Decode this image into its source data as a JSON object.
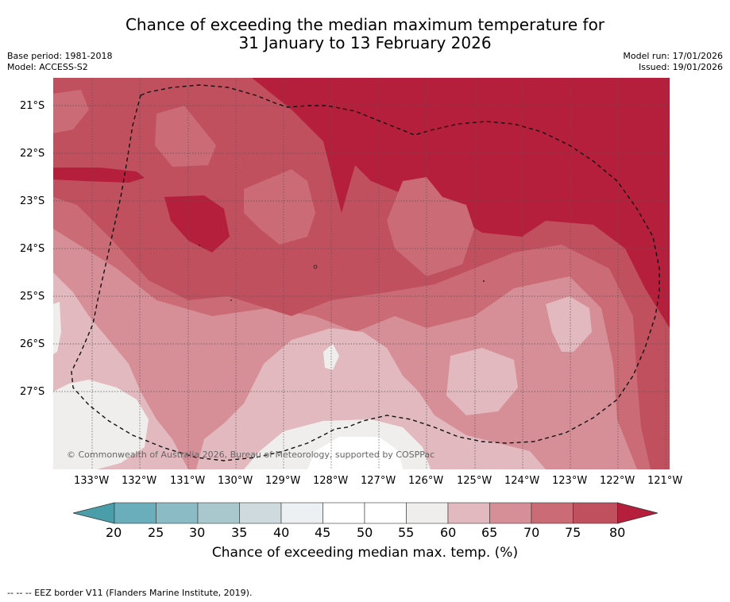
{
  "title": {
    "line1": "Chance of exceeding the median maximum temperature for",
    "line2": "31 January to 13 February 2026"
  },
  "meta": {
    "base_period": "Base period: 1981-2018",
    "model": "Model: ACCESS-S2",
    "model_run": "Model run: 17/01/2026",
    "issued": "Issued: 19/01/2026"
  },
  "map": {
    "lat_labels": [
      "21°S",
      "22°S",
      "23°S",
      "24°S",
      "25°S",
      "26°S",
      "27°S"
    ],
    "lon_labels": [
      "133°W",
      "132°W",
      "131°W",
      "130°W",
      "129°W",
      "128°W",
      "127°W",
      "126°W",
      "125°W",
      "124°W",
      "123°W",
      "122°W",
      "121°W"
    ],
    "credit": "© Commonwealth of Australia 2026, Bureau of Meteorology, supported by COSPPac"
  },
  "colorbar": {
    "ticks": [
      "20",
      "25",
      "30",
      "35",
      "40",
      "45",
      "50",
      "55",
      "60",
      "65",
      "70",
      "75",
      "80"
    ],
    "label": "Chance of exceeding median max. temp. (%)",
    "colors": {
      "below20": "#4a9eaa",
      "b20_25": "#6aaebb",
      "b25_30": "#8bbcc6",
      "b30_35": "#a9c8cd",
      "b35_40": "#cfdadf",
      "b40_45": "#ecf0f2",
      "b45_50": "#ffffff",
      "b50_55": "#ffffff",
      "b55_60": "#efeeec",
      "b60_65": "#e1b9be",
      "b65_70": "#d68f97",
      "b70_75": "#ca6b76",
      "b75_80": "#c0505d",
      "above80": "#b51f3b"
    }
  },
  "footnote": "-- -- -- EEZ border V11 (Flanders Marine Institute, 2019)."
}
